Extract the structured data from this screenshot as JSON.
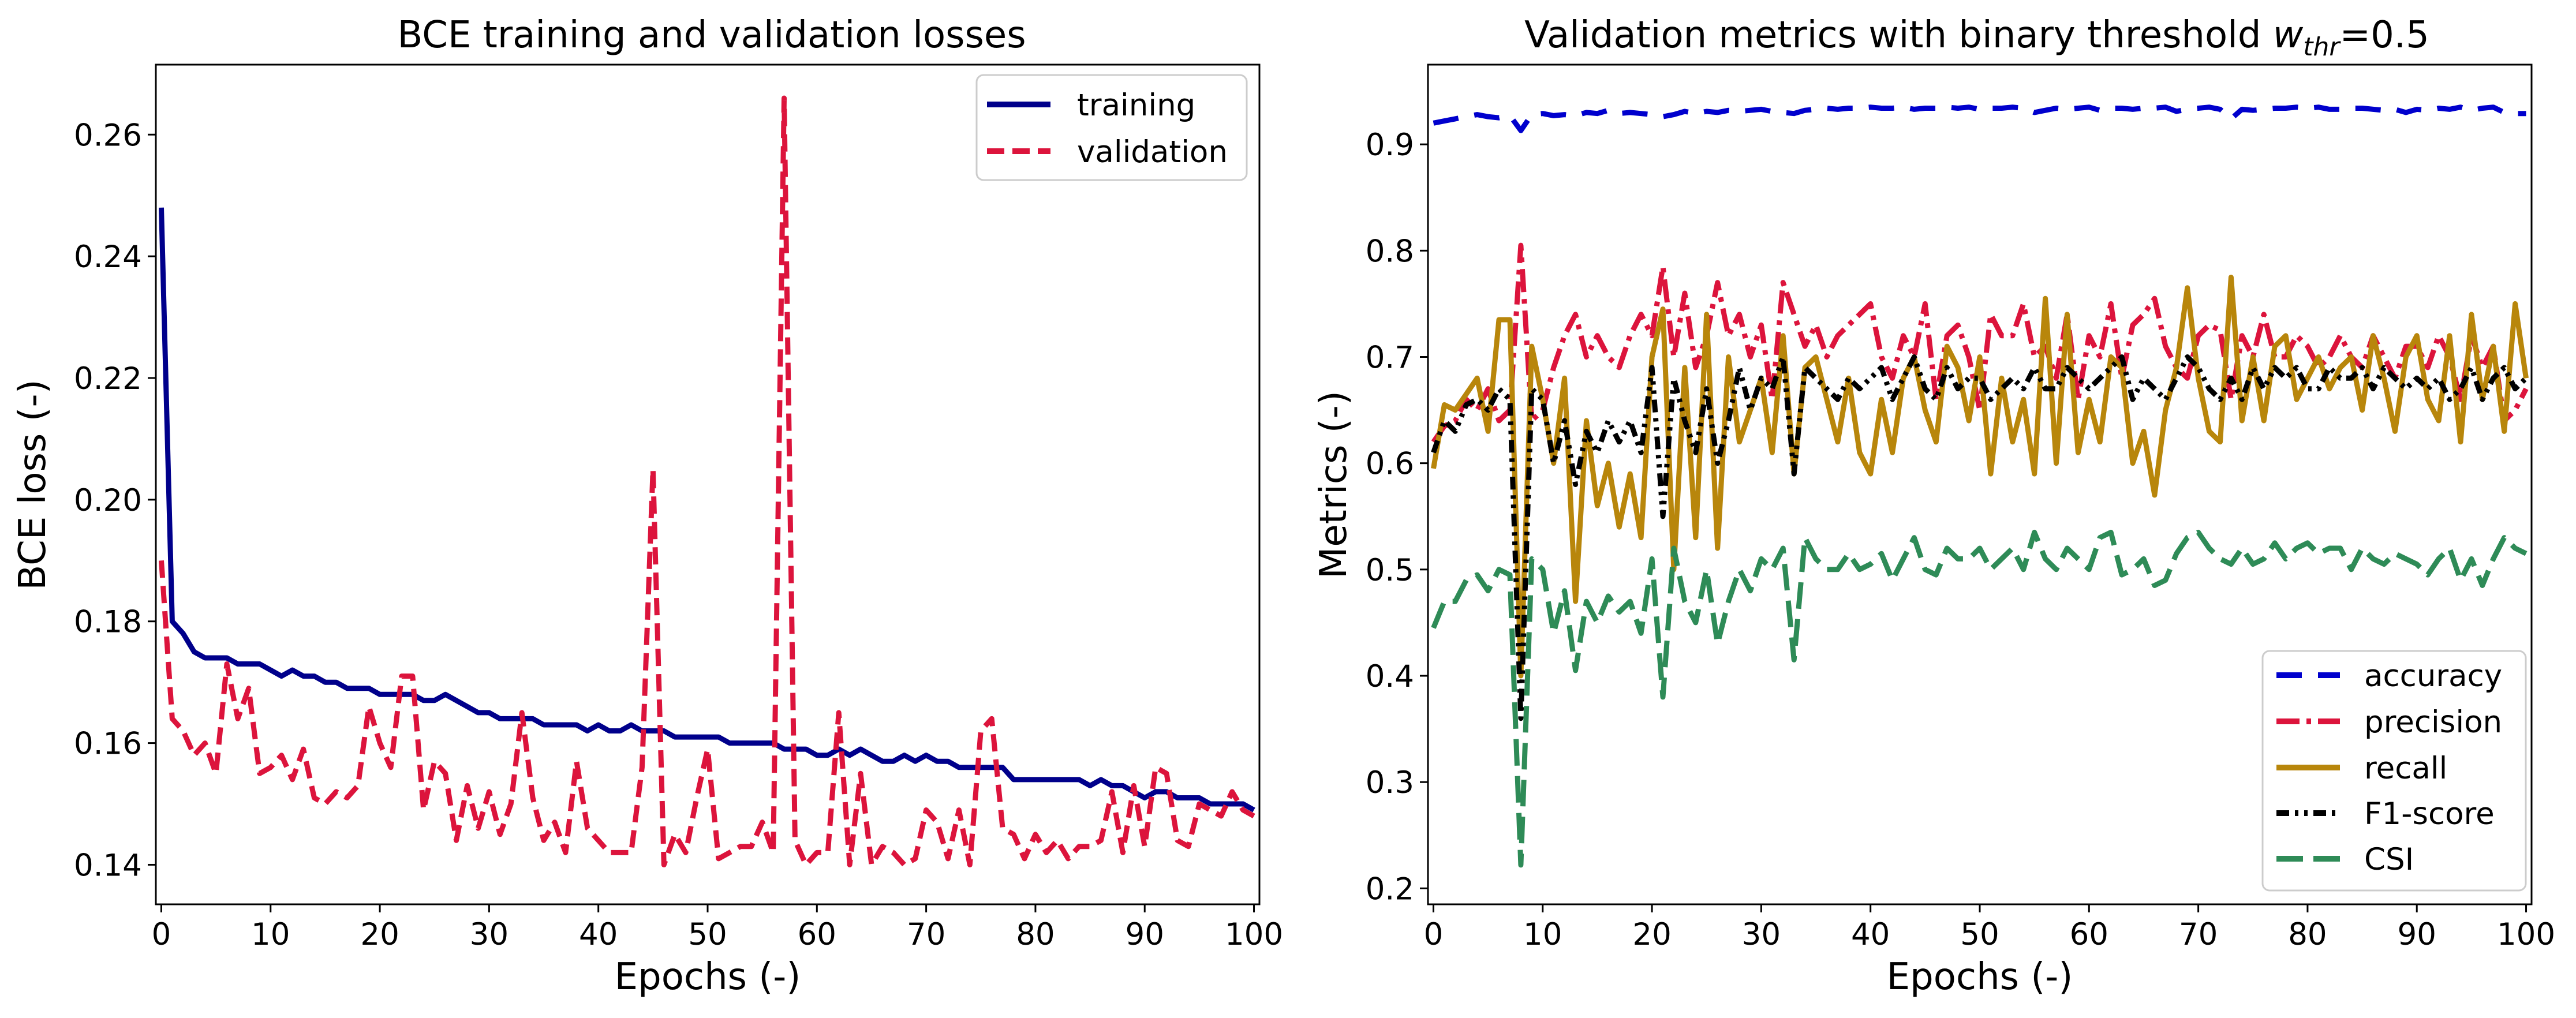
{
  "chart_data": [
    {
      "type": "line",
      "title": "BCE training and validation losses",
      "xlabel": "Epochs (-)",
      "ylabel": "BCE loss (-)",
      "xlim": [
        -0.5,
        100.5
      ],
      "ylim": [
        0.1335,
        0.2715
      ],
      "xticks": [
        0,
        10,
        20,
        30,
        40,
        50,
        60,
        70,
        80,
        90,
        100
      ],
      "yticks": [
        0.14,
        0.16,
        0.18,
        0.2,
        0.22,
        0.24,
        0.26
      ],
      "ytick_labels": [
        "0.14",
        "0.16",
        "0.18",
        "0.20",
        "0.22",
        "0.24",
        "0.26"
      ],
      "grid": false,
      "legend_position": "top-right",
      "series": [
        {
          "name": "training",
          "color": "#00008b",
          "dash": "solid",
          "values": [
            0.248,
            0.18,
            0.178,
            0.175,
            0.174,
            0.174,
            0.174,
            0.173,
            0.173,
            0.173,
            0.172,
            0.171,
            0.172,
            0.171,
            0.171,
            0.17,
            0.17,
            0.169,
            0.169,
            0.169,
            0.168,
            0.168,
            0.168,
            0.168,
            0.167,
            0.167,
            0.168,
            0.167,
            0.166,
            0.165,
            0.165,
            0.164,
            0.164,
            0.164,
            0.164,
            0.163,
            0.163,
            0.163,
            0.163,
            0.162,
            0.163,
            0.162,
            0.162,
            0.163,
            0.162,
            0.162,
            0.162,
            0.161,
            0.161,
            0.161,
            0.161,
            0.161,
            0.16,
            0.16,
            0.16,
            0.16,
            0.16,
            0.159,
            0.159,
            0.159,
            0.158,
            0.158,
            0.159,
            0.158,
            0.159,
            0.158,
            0.157,
            0.157,
            0.158,
            0.157,
            0.158,
            0.157,
            0.157,
            0.156,
            0.156,
            0.156,
            0.156,
            0.156,
            0.154,
            0.154,
            0.154,
            0.154,
            0.154,
            0.154,
            0.154,
            0.153,
            0.154,
            0.153,
            0.153,
            0.152,
            0.151,
            0.152,
            0.152,
            0.151,
            0.151,
            0.151,
            0.15,
            0.15,
            0.15,
            0.15,
            0.149
          ]
        },
        {
          "name": "validation",
          "color": "#dc143c",
          "dash": "dashed",
          "values": [
            0.19,
            0.164,
            0.162,
            0.158,
            0.16,
            0.155,
            0.173,
            0.164,
            0.169,
            0.155,
            0.156,
            0.158,
            0.154,
            0.159,
            0.151,
            0.15,
            0.152,
            0.151,
            0.153,
            0.166,
            0.16,
            0.156,
            0.171,
            0.171,
            0.149,
            0.157,
            0.155,
            0.144,
            0.153,
            0.146,
            0.152,
            0.145,
            0.15,
            0.165,
            0.151,
            0.144,
            0.147,
            0.142,
            0.157,
            0.146,
            0.144,
            0.142,
            0.142,
            0.142,
            0.156,
            0.205,
            0.14,
            0.145,
            0.142,
            0.151,
            0.159,
            0.141,
            0.142,
            0.143,
            0.143,
            0.147,
            0.142,
            0.266,
            0.144,
            0.14,
            0.142,
            0.142,
            0.165,
            0.14,
            0.155,
            0.14,
            0.143,
            0.142,
            0.14,
            0.141,
            0.149,
            0.147,
            0.141,
            0.149,
            0.14,
            0.162,
            0.164,
            0.146,
            0.145,
            0.141,
            0.145,
            0.142,
            0.144,
            0.141,
            0.143,
            0.143,
            0.144,
            0.152,
            0.142,
            0.153,
            0.143,
            0.156,
            0.155,
            0.144,
            0.143,
            0.15,
            0.149,
            0.148,
            0.152,
            0.149,
            0.148
          ]
        }
      ]
    },
    {
      "type": "line",
      "title_main": "Validation metrics with binary threshold ",
      "title_symbol": "w",
      "title_subscript": "thr",
      "title_suffix": "=0.5",
      "xlabel": "Epochs (-)",
      "ylabel": "Metrics (-)",
      "xlim": [
        -0.5,
        100.5
      ],
      "ylim": [
        0.185,
        0.975
      ],
      "xticks": [
        0,
        10,
        20,
        30,
        40,
        50,
        60,
        70,
        80,
        90,
        100
      ],
      "yticks": [
        0.2,
        0.3,
        0.4,
        0.5,
        0.6,
        0.7,
        0.8,
        0.9
      ],
      "ytick_labels": [
        "0.2",
        "0.3",
        "0.4",
        "0.5",
        "0.6",
        "0.7",
        "0.8",
        "0.9"
      ],
      "grid": false,
      "legend_position": "bottom-right",
      "series": [
        {
          "name": "accuracy",
          "color": "#0000cd",
          "dash": "loosely-dashed",
          "values": [
            0.92,
            0.922,
            0.924,
            0.926,
            0.928,
            0.926,
            0.925,
            0.927,
            0.913,
            0.928,
            0.929,
            0.927,
            0.928,
            0.927,
            0.93,
            0.929,
            0.932,
            0.929,
            0.93,
            0.929,
            0.928,
            0.926,
            0.928,
            0.931,
            0.929,
            0.931,
            0.93,
            0.932,
            0.931,
            0.932,
            0.933,
            0.931,
            0.93,
            0.929,
            0.932,
            0.933,
            0.934,
            0.933,
            0.934,
            0.934,
            0.935,
            0.934,
            0.934,
            0.935,
            0.933,
            0.934,
            0.934,
            0.935,
            0.934,
            0.935,
            0.933,
            0.934,
            0.934,
            0.935,
            0.934,
            0.93,
            0.932,
            0.934,
            0.933,
            0.934,
            0.935,
            0.932,
            0.934,
            0.934,
            0.933,
            0.934,
            0.934,
            0.935,
            0.931,
            0.933,
            0.934,
            0.935,
            0.933,
            0.924,
            0.933,
            0.932,
            0.933,
            0.934,
            0.934,
            0.935,
            0.934,
            0.935,
            0.933,
            0.933,
            0.934,
            0.934,
            0.933,
            0.932,
            0.933,
            0.93,
            0.933,
            0.932,
            0.934,
            0.933,
            0.935,
            0.932,
            0.934,
            0.935,
            0.93,
            0.929,
            0.929
          ]
        },
        {
          "name": "precision",
          "color": "#dc143c",
          "dash": "dash-dot",
          "values": [
            0.62,
            0.635,
            0.64,
            0.66,
            0.65,
            0.67,
            0.64,
            0.65,
            0.805,
            0.64,
            0.65,
            0.69,
            0.72,
            0.74,
            0.7,
            0.72,
            0.7,
            0.69,
            0.72,
            0.74,
            0.72,
            0.785,
            0.7,
            0.76,
            0.69,
            0.72,
            0.77,
            0.72,
            0.74,
            0.7,
            0.73,
            0.66,
            0.77,
            0.74,
            0.71,
            0.73,
            0.7,
            0.72,
            0.73,
            0.74,
            0.75,
            0.7,
            0.68,
            0.72,
            0.7,
            0.75,
            0.66,
            0.72,
            0.73,
            0.7,
            0.65,
            0.74,
            0.72,
            0.72,
            0.75,
            0.7,
            0.71,
            0.68,
            0.74,
            0.66,
            0.72,
            0.7,
            0.75,
            0.68,
            0.73,
            0.74,
            0.755,
            0.71,
            0.69,
            0.68,
            0.72,
            0.73,
            0.725,
            0.66,
            0.72,
            0.7,
            0.74,
            0.7,
            0.7,
            0.72,
            0.71,
            0.69,
            0.7,
            0.72,
            0.7,
            0.69,
            0.72,
            0.7,
            0.68,
            0.71,
            0.71,
            0.69,
            0.72,
            0.7,
            0.66,
            0.72,
            0.69,
            0.71,
            0.64,
            0.65,
            0.67
          ]
        },
        {
          "name": "recall",
          "color": "#b8860b",
          "dash": "solid",
          "values": [
            0.595,
            0.655,
            0.65,
            0.665,
            0.68,
            0.63,
            0.735,
            0.735,
            0.4,
            0.71,
            0.66,
            0.6,
            0.68,
            0.47,
            0.64,
            0.56,
            0.6,
            0.54,
            0.59,
            0.53,
            0.7,
            0.745,
            0.5,
            0.69,
            0.53,
            0.74,
            0.52,
            0.7,
            0.62,
            0.65,
            0.68,
            0.61,
            0.72,
            0.59,
            0.69,
            0.7,
            0.66,
            0.62,
            0.68,
            0.61,
            0.59,
            0.66,
            0.61,
            0.68,
            0.7,
            0.65,
            0.62,
            0.71,
            0.69,
            0.64,
            0.7,
            0.59,
            0.68,
            0.62,
            0.66,
            0.59,
            0.755,
            0.6,
            0.74,
            0.61,
            0.66,
            0.62,
            0.7,
            0.69,
            0.6,
            0.63,
            0.57,
            0.65,
            0.69,
            0.765,
            0.68,
            0.63,
            0.62,
            0.775,
            0.64,
            0.7,
            0.64,
            0.71,
            0.72,
            0.66,
            0.68,
            0.7,
            0.67,
            0.69,
            0.7,
            0.65,
            0.72,
            0.68,
            0.63,
            0.7,
            0.72,
            0.66,
            0.64,
            0.72,
            0.62,
            0.74,
            0.66,
            0.71,
            0.63,
            0.75,
            0.68
          ]
        },
        {
          "name": "F1-score",
          "color": "#000000",
          "dash": "dash-dot-dot",
          "values": [
            0.61,
            0.64,
            0.63,
            0.655,
            0.66,
            0.65,
            0.67,
            0.66,
            0.36,
            0.67,
            0.66,
            0.6,
            0.64,
            0.58,
            0.63,
            0.61,
            0.64,
            0.62,
            0.64,
            0.61,
            0.69,
            0.55,
            0.68,
            0.64,
            0.61,
            0.67,
            0.6,
            0.64,
            0.69,
            0.65,
            0.68,
            0.67,
            0.7,
            0.59,
            0.69,
            0.68,
            0.67,
            0.66,
            0.68,
            0.67,
            0.68,
            0.69,
            0.66,
            0.68,
            0.7,
            0.67,
            0.66,
            0.69,
            0.67,
            0.68,
            0.68,
            0.66,
            0.67,
            0.68,
            0.67,
            0.69,
            0.67,
            0.67,
            0.69,
            0.68,
            0.67,
            0.68,
            0.69,
            0.7,
            0.66,
            0.68,
            0.67,
            0.66,
            0.68,
            0.7,
            0.69,
            0.67,
            0.66,
            0.68,
            0.66,
            0.69,
            0.67,
            0.69,
            0.68,
            0.69,
            0.67,
            0.67,
            0.69,
            0.68,
            0.68,
            0.69,
            0.67,
            0.69,
            0.68,
            0.67,
            0.68,
            0.67,
            0.68,
            0.66,
            0.67,
            0.69,
            0.66,
            0.68,
            0.69,
            0.67,
            0.68
          ]
        },
        {
          "name": "CSI",
          "color": "#2e8b57",
          "dash": "long-dashed",
          "values": [
            0.445,
            0.47,
            0.47,
            0.49,
            0.495,
            0.48,
            0.5,
            0.495,
            0.222,
            0.51,
            0.5,
            0.44,
            0.48,
            0.405,
            0.47,
            0.45,
            0.475,
            0.46,
            0.47,
            0.44,
            0.51,
            0.38,
            0.52,
            0.47,
            0.45,
            0.5,
            0.43,
            0.47,
            0.5,
            0.48,
            0.51,
            0.5,
            0.52,
            0.415,
            0.53,
            0.51,
            0.5,
            0.5,
            0.515,
            0.5,
            0.505,
            0.515,
            0.49,
            0.51,
            0.53,
            0.5,
            0.495,
            0.52,
            0.51,
            0.51,
            0.52,
            0.5,
            0.51,
            0.52,
            0.5,
            0.535,
            0.51,
            0.5,
            0.52,
            0.51,
            0.5,
            0.53,
            0.535,
            0.495,
            0.5,
            0.51,
            0.485,
            0.49,
            0.515,
            0.53,
            0.535,
            0.52,
            0.51,
            0.505,
            0.52,
            0.505,
            0.51,
            0.525,
            0.51,
            0.52,
            0.525,
            0.515,
            0.52,
            0.52,
            0.5,
            0.52,
            0.51,
            0.505,
            0.515,
            0.51,
            0.505,
            0.495,
            0.51,
            0.52,
            0.49,
            0.51,
            0.485,
            0.51,
            0.53,
            0.52,
            0.515
          ]
        }
      ]
    }
  ]
}
